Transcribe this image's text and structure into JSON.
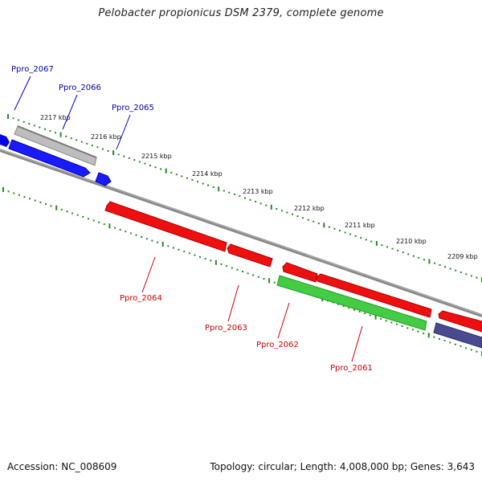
{
  "title": "Pelobacter propionicus DSM 2379, complete genome",
  "footer": {
    "accession": "Accession: NC_008609",
    "summary": "Topology: circular; Length: 4,008,000 bp; Genes: 3,643"
  },
  "colors": {
    "forward_gene": "#0000ee",
    "reverse_gene": "#ee0000",
    "grey_feature": "#b8b8b8",
    "green_feature": "#33cc33",
    "navy_feature": "#444488",
    "backbone": "#808080",
    "tick": "#228b22",
    "forward_label": "#0000aa",
    "reverse_label": "#cc0000"
  },
  "kbp_labels": [
    {
      "text": "2217 kbp",
      "pos": 2217
    },
    {
      "text": "2216 kbp",
      "pos": 2216
    },
    {
      "text": "2215 kbp",
      "pos": 2215
    },
    {
      "text": "2214 kbp",
      "pos": 2214
    },
    {
      "text": "2213 kbp",
      "pos": 2213
    },
    {
      "text": "2212 kbp",
      "pos": 2212
    },
    {
      "text": "2211 kbp",
      "pos": 2211
    },
    {
      "text": "2210 kbp",
      "pos": 2210
    },
    {
      "text": "2209 kbp",
      "pos": 2209
    }
  ],
  "genes": [
    {
      "label": "Ppro_2067",
      "strand": "forward",
      "color_key": "forward_gene"
    },
    {
      "label": "Ppro_2066",
      "strand": "forward",
      "color_key": "forward_gene"
    },
    {
      "label": "Ppro_2065",
      "strand": "forward",
      "color_key": "forward_gene"
    },
    {
      "label": "Ppro_2064",
      "strand": "reverse",
      "color_key": "reverse_gene"
    },
    {
      "label": "Ppro_2063",
      "strand": "reverse",
      "color_key": "reverse_gene"
    },
    {
      "label": "Ppro_2062",
      "strand": "reverse",
      "color_key": "reverse_gene"
    },
    {
      "label": "Ppro_2061",
      "strand": "reverse",
      "color_key": "reverse_gene"
    }
  ]
}
